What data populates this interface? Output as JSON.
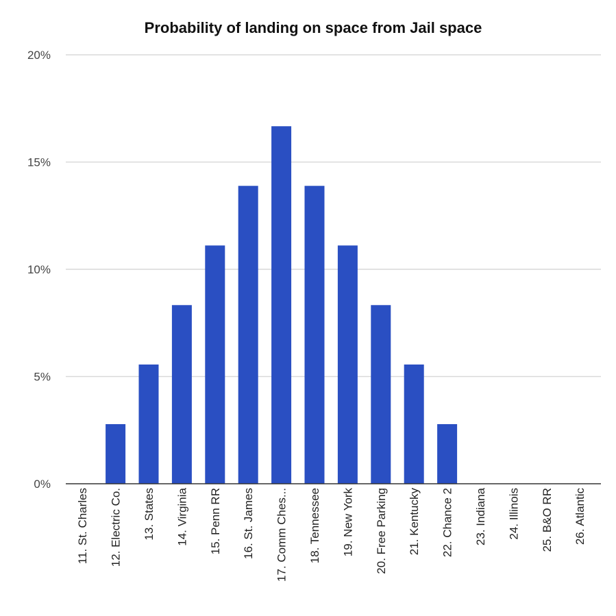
{
  "chart_data": {
    "type": "bar",
    "title": "Probability of landing on space from Jail space",
    "xlabel": "",
    "ylabel": "",
    "ylim": [
      0,
      20
    ],
    "y_ticks": [
      0,
      5,
      10,
      15,
      20
    ],
    "y_tick_labels": [
      "0%",
      "5%",
      "10%",
      "15%",
      "20%"
    ],
    "grid": true,
    "legend": "none",
    "categories": [
      "11. St. Charles",
      "12. Electric Co.",
      "13. States",
      "14. Virginia",
      "15. Penn RR",
      "16. St. James",
      "17. Comm Ches...",
      "18. Tennessee",
      "19. New York",
      "20. Free Parking",
      "21. Kentucky",
      "22. Chance 2",
      "23. Indiana",
      "24. Illinois",
      "25. B&O RR",
      "26. Atlantic"
    ],
    "values": [
      0,
      2.78,
      5.56,
      8.33,
      11.11,
      13.89,
      16.67,
      13.89,
      11.11,
      8.33,
      5.56,
      2.78,
      0,
      0,
      0,
      0
    ],
    "colors": {
      "bar": "#2a4fc2",
      "grid": "#d9d9d9",
      "axis": "#333333"
    }
  }
}
